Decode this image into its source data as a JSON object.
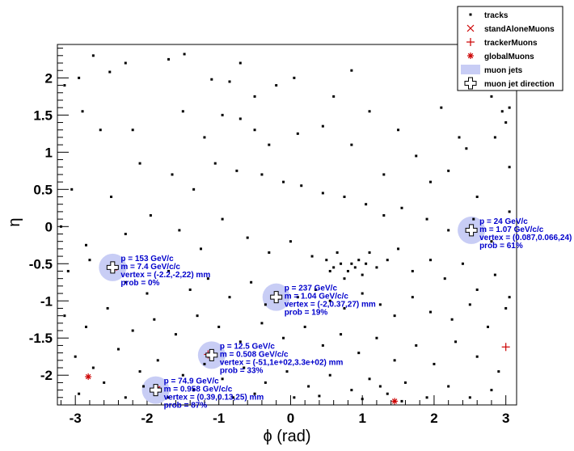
{
  "chart_data": {
    "type": "scatter",
    "xlabel": "ϕ (rad)",
    "ylabel": "η",
    "xlim": [
      -3.25,
      3.15
    ],
    "ylim": [
      -2.4,
      2.45
    ],
    "x_ticks": [
      "-3",
      "-2",
      "-1",
      "0",
      "1",
      "2",
      "3"
    ],
    "x_tick_values": [
      -3,
      -2,
      -1,
      0,
      1,
      2,
      3
    ],
    "y_ticks": [
      "2",
      "1.5",
      "1",
      "0.5",
      "0",
      "-0.5",
      "-1",
      "-1.5",
      "-2"
    ],
    "y_tick_values": [
      2,
      1.5,
      1,
      0.5,
      0,
      -0.5,
      -1,
      -1.5,
      -2
    ],
    "legend": {
      "position": "top-right",
      "entries": [
        {
          "label": "tracks",
          "marker": "square-dot",
          "color": "#000000"
        },
        {
          "label": "standAloneMuons",
          "marker": "x",
          "color": "#cc0000"
        },
        {
          "label": "trackerMuons",
          "marker": "plus",
          "color": "#cc0000"
        },
        {
          "label": "globalMuons",
          "marker": "asterisk",
          "color": "#cc0000"
        },
        {
          "label": "muon jets",
          "marker": "fill",
          "color": "#c8cdf5"
        },
        {
          "label": "muon jet direction",
          "marker": "open-cross",
          "color": "#000000"
        }
      ]
    },
    "tracks": [
      [
        -2.75,
        2.3
      ],
      [
        -2.52,
        2.08
      ],
      [
        -2.3,
        2.2
      ],
      [
        -1.7,
        2.25
      ],
      [
        -1.48,
        2.32
      ],
      [
        -1.1,
        1.98
      ],
      [
        -0.85,
        1.95
      ],
      [
        -0.7,
        2.2
      ],
      [
        -0.5,
        1.75
      ],
      [
        -0.2,
        1.9
      ],
      [
        0.05,
        2.0
      ],
      [
        0.6,
        1.75
      ],
      [
        0.85,
        2.1
      ],
      [
        1.1,
        1.55
      ],
      [
        1.5,
        1.3
      ],
      [
        2.1,
        1.6
      ],
      [
        2.35,
        1.2
      ],
      [
        2.45,
        1.05
      ],
      [
        2.8,
        1.75
      ],
      [
        2.95,
        1.55
      ],
      [
        3.05,
        1.6
      ],
      [
        3.0,
        1.4
      ],
      [
        2.85,
        1.2
      ],
      [
        -2.95,
        2.0
      ],
      [
        -3.15,
        1.9
      ],
      [
        -2.9,
        1.55
      ],
      [
        -2.65,
        1.3
      ],
      [
        -2.2,
        1.3
      ],
      [
        -1.5,
        1.55
      ],
      [
        -1.2,
        1.2
      ],
      [
        -0.95,
        1.5
      ],
      [
        -0.7,
        1.45
      ],
      [
        -0.5,
        1.3
      ],
      [
        -0.3,
        1.1
      ],
      [
        0.1,
        1.25
      ],
      [
        0.45,
        1.35
      ],
      [
        0.85,
        1.1
      ],
      [
        1.3,
        0.7
      ],
      [
        1.75,
        0.95
      ],
      [
        1.95,
        0.6
      ],
      [
        2.2,
        0.75
      ],
      [
        2.6,
        0.4
      ],
      [
        3.05,
        0.8
      ],
      [
        -3.05,
        0.5
      ],
      [
        -2.5,
        0.4
      ],
      [
        -2.1,
        0.85
      ],
      [
        -1.65,
        0.7
      ],
      [
        -1.35,
        0.5
      ],
      [
        -1.05,
        0.85
      ],
      [
        -0.75,
        0.75
      ],
      [
        -0.4,
        0.7
      ],
      [
        -0.1,
        0.6
      ],
      [
        0.15,
        0.55
      ],
      [
        0.45,
        0.45
      ],
      [
        0.75,
        0.4
      ],
      [
        1.05,
        0.3
      ],
      [
        1.3,
        0.15
      ],
      [
        1.55,
        0.25
      ],
      [
        1.9,
        0.1
      ],
      [
        2.2,
        -0.05
      ],
      [
        2.55,
        0.1
      ],
      [
        2.8,
        -0.2
      ],
      [
        3.05,
        0.2
      ],
      [
        -3.2,
        0.0
      ],
      [
        -2.85,
        -0.25
      ],
      [
        -2.3,
        -0.1
      ],
      [
        -1.95,
        0.15
      ],
      [
        -1.55,
        -0.05
      ],
      [
        -1.25,
        -0.3
      ],
      [
        -0.95,
        0.1
      ],
      [
        -0.6,
        -0.15
      ],
      [
        -0.3,
        -0.35
      ],
      [
        0.0,
        -0.2
      ],
      [
        0.3,
        -0.4
      ],
      [
        0.5,
        -0.45
      ],
      [
        0.6,
        -0.55
      ],
      [
        0.7,
        -0.5
      ],
      [
        0.8,
        -0.6
      ],
      [
        0.85,
        -0.5
      ],
      [
        0.9,
        -0.55
      ],
      [
        0.95,
        -0.45
      ],
      [
        1.0,
        -0.65
      ],
      [
        1.05,
        -0.5
      ],
      [
        0.75,
        -0.7
      ],
      [
        0.65,
        -0.35
      ],
      [
        0.55,
        -0.6
      ],
      [
        1.1,
        -0.35
      ],
      [
        1.2,
        -0.55
      ],
      [
        1.35,
        -0.45
      ],
      [
        1.5,
        -0.3
      ],
      [
        1.7,
        -0.6
      ],
      [
        1.95,
        -0.45
      ],
      [
        2.15,
        -0.7
      ],
      [
        2.4,
        -0.5
      ],
      [
        2.6,
        -0.85
      ],
      [
        2.85,
        -0.65
      ],
      [
        3.05,
        -0.95
      ],
      [
        -3.1,
        -0.6
      ],
      [
        -2.8,
        -0.45
      ],
      [
        -2.3,
        -0.75
      ],
      [
        -2.0,
        -0.9
      ],
      [
        -1.7,
        -0.6
      ],
      [
        -1.4,
        -0.85
      ],
      [
        -1.15,
        -0.7
      ],
      [
        -0.85,
        -0.95
      ],
      [
        -0.55,
        -0.75
      ],
      [
        -0.35,
        -1.05
      ],
      [
        0.1,
        -0.95
      ],
      [
        0.35,
        -0.85
      ],
      [
        0.55,
        -1.0
      ],
      [
        0.75,
        -1.1
      ],
      [
        1.0,
        -0.9
      ],
      [
        1.25,
        -1.05
      ],
      [
        1.45,
        -1.2
      ],
      [
        1.7,
        -0.95
      ],
      [
        1.95,
        -1.15
      ],
      [
        2.25,
        -1.25
      ],
      [
        2.5,
        -1.05
      ],
      [
        2.75,
        -1.35
      ],
      [
        3.0,
        -1.1
      ],
      [
        -3.15,
        -1.2
      ],
      [
        -2.85,
        -1.35
      ],
      [
        -2.55,
        -1.1
      ],
      [
        -2.2,
        -1.4
      ],
      [
        -1.9,
        -1.25
      ],
      [
        -1.6,
        -1.45
      ],
      [
        -1.3,
        -1.2
      ],
      [
        -1.0,
        -1.35
      ],
      [
        -0.7,
        -1.55
      ],
      [
        -0.4,
        -1.3
      ],
      [
        -0.1,
        -1.5
      ],
      [
        0.2,
        -1.35
      ],
      [
        0.45,
        -1.6
      ],
      [
        0.7,
        -1.45
      ],
      [
        0.95,
        -1.7
      ],
      [
        1.2,
        -1.5
      ],
      [
        1.45,
        -1.8
      ],
      [
        1.75,
        -1.6
      ],
      [
        2.0,
        -1.85
      ],
      [
        2.3,
        -1.55
      ],
      [
        2.6,
        -1.75
      ],
      [
        2.9,
        -1.95
      ],
      [
        -3.0,
        -1.75
      ],
      [
        -2.75,
        -1.9
      ],
      [
        -2.4,
        -1.65
      ],
      [
        -2.1,
        -1.95
      ],
      [
        -1.85,
        -1.8
      ],
      [
        -1.5,
        -2.0
      ],
      [
        -1.2,
        -1.85
      ],
      [
        -0.95,
        -2.05
      ],
      [
        -0.65,
        -1.9
      ],
      [
        -0.35,
        -2.1
      ],
      [
        -0.05,
        -1.95
      ],
      [
        0.25,
        -2.15
      ],
      [
        0.55,
        -2.0
      ],
      [
        0.85,
        -2.2
      ],
      [
        1.1,
        -2.05
      ],
      [
        1.35,
        -2.25
      ],
      [
        1.6,
        -2.1
      ],
      [
        1.9,
        -2.3
      ],
      [
        2.2,
        -2.15
      ],
      [
        2.5,
        -2.3
      ],
      [
        2.8,
        -2.2
      ],
      [
        -2.95,
        -2.25
      ],
      [
        -2.6,
        -2.1
      ],
      [
        -2.3,
        -2.3
      ],
      [
        -2.05,
        -2.15
      ],
      [
        -1.7,
        -2.3
      ],
      [
        -1.35,
        -2.2
      ],
      [
        -0.8,
        -2.3
      ],
      [
        -0.5,
        -2.25
      ],
      [
        0.05,
        -2.3
      ],
      [
        0.4,
        -2.28
      ],
      [
        1.0,
        -2.32
      ],
      [
        1.25,
        -2.15
      ],
      [
        1.55,
        -2.35
      ]
    ],
    "muon_jets": [
      {
        "phi": -2.48,
        "eta": -0.55,
        "p": "p = 153 GeV/c",
        "m": "m = 7.4 GeV/c/c",
        "vertex": "vertex = (-2.2,-2,22) mm",
        "prob": "prob = 0%"
      },
      {
        "phi": -0.2,
        "eta": -0.95,
        "p": "p = 237 GeV/c",
        "m": "m = 1.04 GeV/c/c",
        "vertex": "vertex = (-2,0.37,27) mm",
        "prob": "prob = 19%"
      },
      {
        "phi": 2.52,
        "eta": -0.05,
        "p": "p = 24 GeV/c",
        "m": "m = 1.07 GeV/c/c",
        "vertex": "vertex = (0.087,0.066,24) mm",
        "prob": "prob = 61%"
      },
      {
        "phi": -1.1,
        "eta": -1.73,
        "p": "p = 12.5 GeV/c",
        "m": "m = 0.508 GeV/c/c",
        "vertex": "vertex = (-51,1e+02,3.3e+02) mm",
        "prob": "prob = 33%"
      },
      {
        "phi": -1.88,
        "eta": -2.2,
        "p": "p = 74.9 GeV/c",
        "m": "m = 0.958 GeV/c/c",
        "vertex": "vertex = (0.39,0.13,25) mm",
        "prob": "prob = 87%"
      }
    ],
    "muons": [
      {
        "phi": -2.5,
        "eta": -0.55,
        "kind": "tracker"
      },
      {
        "phi": -2.45,
        "eta": -0.56,
        "kind": "global"
      },
      {
        "phi": -0.22,
        "eta": -0.94,
        "kind": "tracker"
      },
      {
        "phi": -0.18,
        "eta": -0.95,
        "kind": "global"
      },
      {
        "phi": 2.5,
        "eta": -0.05,
        "kind": "tracker"
      },
      {
        "phi": -1.15,
        "eta": -1.72,
        "kind": "tracker"
      },
      {
        "phi": -1.9,
        "eta": -2.2,
        "kind": "tracker"
      },
      {
        "phi": -1.85,
        "eta": -2.18,
        "kind": "global"
      },
      {
        "phi": -2.82,
        "eta": -2.02,
        "kind": "global"
      },
      {
        "phi": 3.0,
        "eta": -1.62,
        "kind": "tracker"
      },
      {
        "phi": 1.45,
        "eta": -2.35,
        "kind": "global"
      }
    ]
  }
}
